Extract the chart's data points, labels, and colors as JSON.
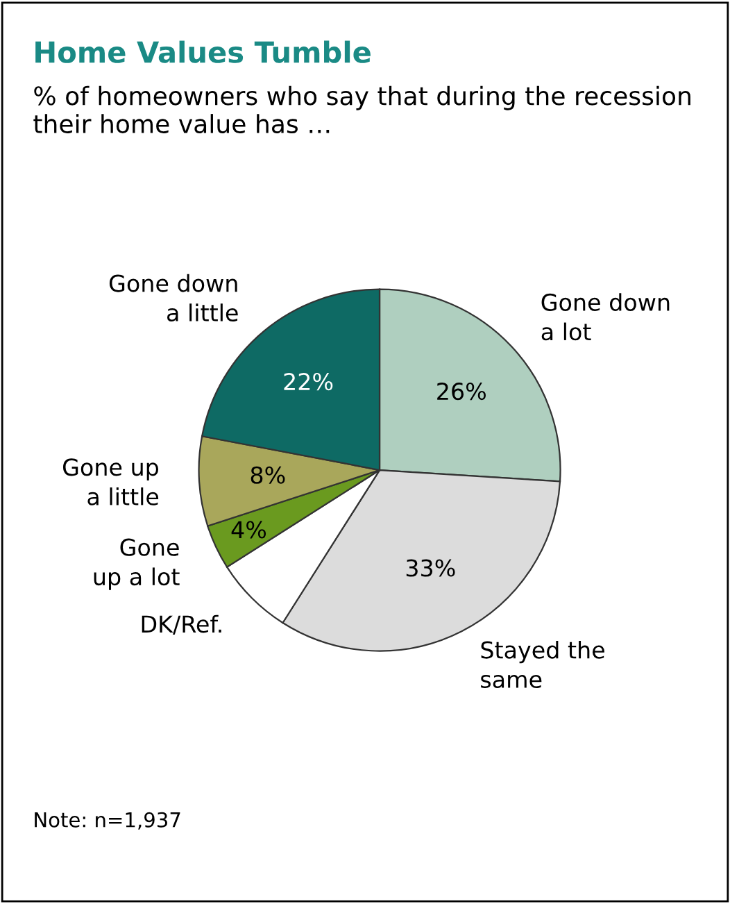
{
  "chart_data": {
    "type": "pie",
    "title": "Home Values Tumble",
    "subtitle": "% of homeowners who say that during the recession their home value has …",
    "categories": [
      "Gone down\na lot",
      "Stayed the\nsame",
      "DK/Ref.",
      "Gone\nup a lot",
      "Gone up\na little",
      "Gone down\na little"
    ],
    "values": [
      26,
      33,
      7,
      4,
      8,
      22
    ],
    "value_labels": [
      "26%",
      "33%",
      null,
      "4%",
      "8%",
      "22%"
    ],
    "colors": [
      "#afcfbf",
      "#dcdcdc",
      "#ffffff",
      "#6a9a1f",
      "#a9a75b",
      "#0e6a64"
    ],
    "annotations": [
      "Note: n=1,937"
    ]
  }
}
